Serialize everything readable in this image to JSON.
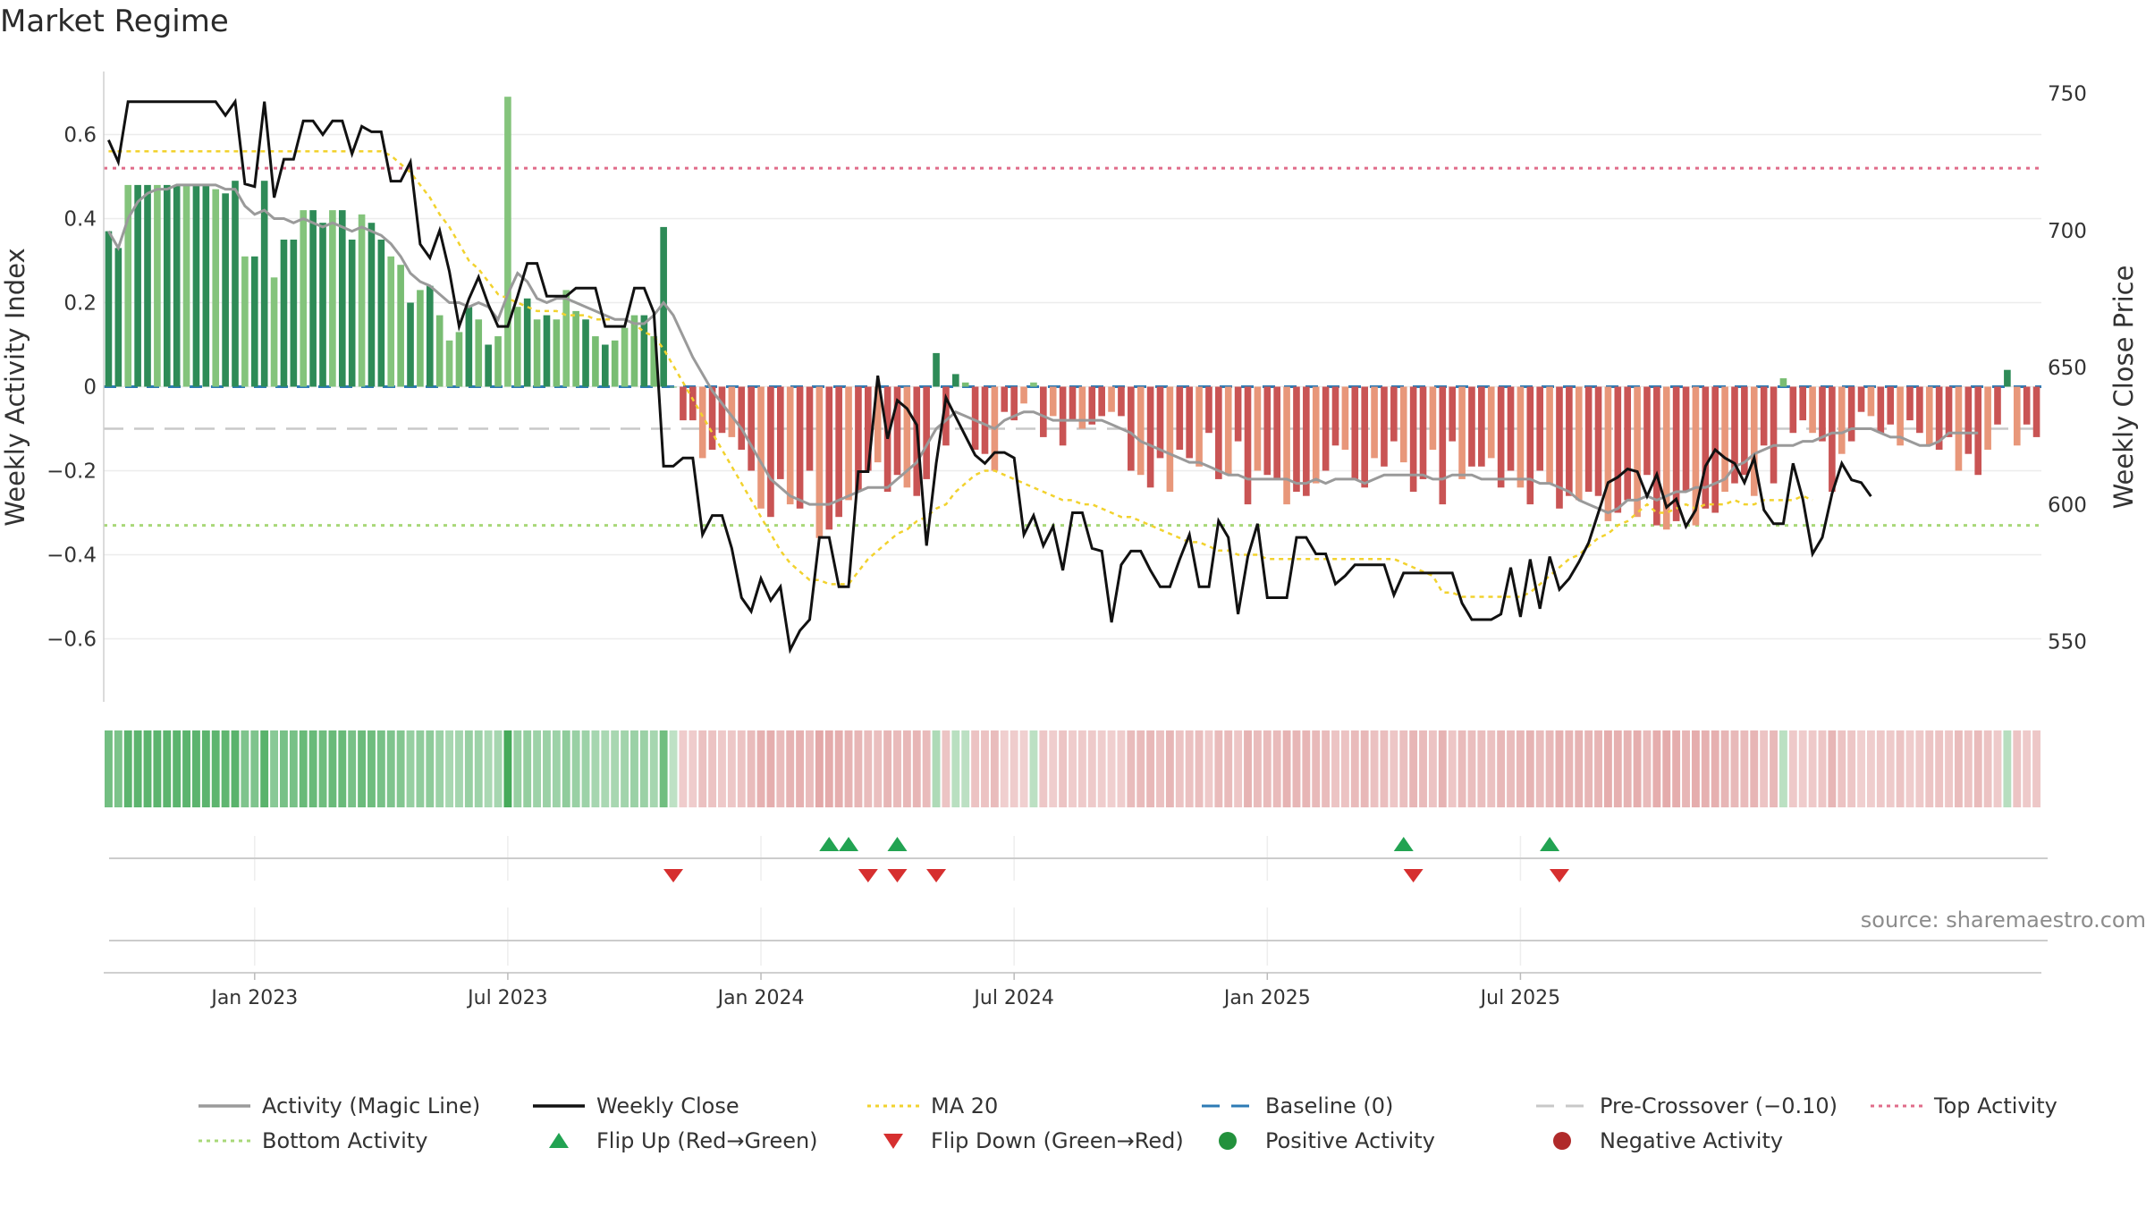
{
  "chart_data": {
    "type": "bar",
    "title": "Market Regime",
    "source_text": "source: sharemaestro.com",
    "ylabel": "Weekly Activity Index",
    "y2label": "Weekly Close Price",
    "ylim": [
      -0.75,
      0.75
    ],
    "y2lim": [
      528,
      758
    ],
    "yticks": [
      {
        "value": 0.6,
        "label": "0.6"
      },
      {
        "value": 0.4,
        "label": "0.4"
      },
      {
        "value": 0.2,
        "label": "0.2"
      },
      {
        "value": 0,
        "label": "0"
      },
      {
        "value": -0.2,
        "label": "−0.2"
      },
      {
        "value": -0.4,
        "label": "−0.4"
      },
      {
        "value": -0.6,
        "label": "−0.6"
      }
    ],
    "y2ticks": [
      {
        "value": 750,
        "label": "750"
      },
      {
        "value": 700,
        "label": "700"
      },
      {
        "value": 650,
        "label": "650"
      },
      {
        "value": 600,
        "label": "600"
      },
      {
        "value": 550,
        "label": "550"
      }
    ],
    "xticks": [
      {
        "week": 15,
        "label": "Jan 2023"
      },
      {
        "week": 41,
        "label": "Jul 2023"
      },
      {
        "week": 67,
        "label": "Jan 2024"
      },
      {
        "week": 93,
        "label": "Jul 2024"
      },
      {
        "week": 119,
        "label": "Jan 2025"
      },
      {
        "week": 145,
        "label": "Jul 2025"
      }
    ],
    "reference_lines": {
      "top_activity": 0.52,
      "bottom_activity": -0.33,
      "pre_crossover": -0.1,
      "baseline": 0
    },
    "activity": [
      0.37,
      0.33,
      0.48,
      0.48,
      0.48,
      0.48,
      0.48,
      0.48,
      0.48,
      0.48,
      0.48,
      0.47,
      0.46,
      0.49,
      0.31,
      0.31,
      0.49,
      0.26,
      0.35,
      0.35,
      0.42,
      0.42,
      0.39,
      0.42,
      0.42,
      0.35,
      0.41,
      0.39,
      0.35,
      0.31,
      0.29,
      0.2,
      0.23,
      0.24,
      0.17,
      0.11,
      0.13,
      0.19,
      0.16,
      0.1,
      0.12,
      0.69,
      0.19,
      0.21,
      0.16,
      0.17,
      0.16,
      0.23,
      0.18,
      0.16,
      0.12,
      0.1,
      0.11,
      0.14,
      0.17,
      0.17,
      0.12,
      0.38,
      0.0,
      -0.08,
      -0.08,
      -0.17,
      -0.15,
      -0.11,
      -0.12,
      -0.15,
      -0.2,
      -0.29,
      -0.31,
      -0.22,
      -0.28,
      -0.29,
      -0.2,
      -0.36,
      -0.34,
      -0.31,
      -0.27,
      -0.25,
      -0.2,
      -0.18,
      -0.25,
      -0.21,
      -0.24,
      -0.26,
      -0.22,
      0.08,
      -0.14,
      0.03,
      0.01,
      -0.15,
      -0.16,
      -0.2,
      -0.06,
      -0.08,
      -0.04,
      0.01,
      -0.12,
      -0.07,
      -0.14,
      -0.08,
      -0.1,
      -0.09,
      -0.07,
      -0.06,
      -0.07,
      -0.2,
      -0.21,
      -0.24,
      -0.17,
      -0.25,
      -0.15,
      -0.17,
      -0.19,
      -0.11,
      -0.22,
      -0.21,
      -0.13,
      -0.28,
      -0.2,
      -0.21,
      -0.22,
      -0.28,
      -0.25,
      -0.26,
      -0.23,
      -0.2,
      -0.14,
      -0.15,
      -0.22,
      -0.24,
      -0.17,
      -0.19,
      -0.13,
      -0.18,
      -0.25,
      -0.22,
      -0.15,
      -0.28,
      -0.13,
      -0.22,
      -0.19,
      -0.19,
      -0.17,
      -0.24,
      -0.2,
      -0.24,
      -0.28,
      -0.2,
      -0.23,
      -0.29,
      -0.26,
      -0.27,
      -0.25,
      -0.26,
      -0.32,
      -0.3,
      -0.27,
      -0.31,
      -0.21,
      -0.33,
      -0.34,
      -0.32,
      -0.25,
      -0.33,
      -0.29,
      -0.3,
      -0.25,
      -0.23,
      -0.21,
      -0.26,
      -0.14,
      -0.23,
      0.02,
      -0.11,
      -0.08,
      -0.11,
      -0.13,
      -0.25,
      -0.16,
      -0.13,
      -0.06,
      -0.07,
      -0.11,
      -0.09,
      -0.14,
      -0.08,
      -0.11,
      -0.14,
      -0.15,
      -0.12,
      -0.2,
      -0.16,
      -0.21,
      -0.15,
      -0.09,
      0.04,
      -0.14,
      -0.09,
      -0.12
    ],
    "magic_line": [
      0.37,
      0.33,
      0.4,
      0.44,
      0.46,
      0.47,
      0.47,
      0.48,
      0.48,
      0.48,
      0.48,
      0.48,
      0.47,
      0.47,
      0.43,
      0.41,
      0.42,
      0.4,
      0.4,
      0.39,
      0.4,
      0.39,
      0.38,
      0.39,
      0.38,
      0.37,
      0.38,
      0.37,
      0.36,
      0.34,
      0.31,
      0.27,
      0.25,
      0.24,
      0.22,
      0.2,
      0.2,
      0.19,
      0.2,
      0.19,
      0.16,
      0.22,
      0.27,
      0.25,
      0.21,
      0.2,
      0.21,
      0.21,
      0.2,
      0.19,
      0.18,
      0.17,
      0.16,
      0.16,
      0.15,
      0.15,
      0.17,
      0.2,
      0.17,
      0.12,
      0.07,
      0.03,
      -0.01,
      -0.04,
      -0.07,
      -0.1,
      -0.14,
      -0.18,
      -0.22,
      -0.24,
      -0.26,
      -0.27,
      -0.28,
      -0.28,
      -0.28,
      -0.27,
      -0.26,
      -0.25,
      -0.24,
      -0.24,
      -0.24,
      -0.22,
      -0.2,
      -0.18,
      -0.14,
      -0.1,
      -0.08,
      -0.06,
      -0.07,
      -0.08,
      -0.09,
      -0.1,
      -0.08,
      -0.07,
      -0.06,
      -0.06,
      -0.07,
      -0.08,
      -0.08,
      -0.08,
      -0.08,
      -0.08,
      -0.08,
      -0.09,
      -0.1,
      -0.11,
      -0.13,
      -0.14,
      -0.15,
      -0.16,
      -0.17,
      -0.18,
      -0.18,
      -0.19,
      -0.2,
      -0.21,
      -0.21,
      -0.22,
      -0.22,
      -0.22,
      -0.22,
      -0.22,
      -0.23,
      -0.23,
      -0.22,
      -0.23,
      -0.22,
      -0.22,
      -0.22,
      -0.23,
      -0.22,
      -0.21,
      -0.21,
      -0.21,
      -0.21,
      -0.21,
      -0.22,
      -0.22,
      -0.21,
      -0.21,
      -0.21,
      -0.22,
      -0.22,
      -0.22,
      -0.22,
      -0.22,
      -0.22,
      -0.23,
      -0.23,
      -0.24,
      -0.25,
      -0.27,
      -0.28,
      -0.29,
      -0.3,
      -0.29,
      -0.27,
      -0.27,
      -0.26,
      -0.27,
      -0.26,
      -0.25,
      -0.25,
      -0.24,
      -0.24,
      -0.23,
      -0.22,
      -0.19,
      -0.18,
      -0.16,
      -0.15,
      -0.14,
      -0.14,
      -0.14,
      -0.13,
      -0.13,
      -0.12,
      -0.11,
      -0.11,
      -0.1,
      -0.1,
      -0.1,
      -0.11,
      -0.12,
      -0.12,
      -0.13,
      -0.14,
      -0.14,
      -0.13,
      -0.11,
      -0.11,
      -0.11,
      -0.11
    ],
    "weekly_close": [
      733,
      725,
      747,
      747,
      747,
      747,
      747,
      747,
      747,
      747,
      747,
      747,
      742,
      747,
      717,
      716,
      747,
      712,
      726,
      726,
      740,
      740,
      735,
      740,
      740,
      728,
      738,
      736,
      736,
      718,
      718,
      725,
      695,
      690,
      700,
      685,
      665,
      675,
      683,
      673,
      665,
      665,
      676,
      688,
      688,
      676,
      676,
      676,
      679,
      679,
      679,
      665,
      665,
      665,
      679,
      679,
      670,
      614,
      614,
      617,
      617,
      589,
      596,
      596,
      584,
      566,
      561,
      573,
      565,
      570,
      547,
      554,
      558,
      588,
      588,
      570,
      570,
      612,
      612,
      647,
      624,
      638,
      635,
      629,
      585,
      615,
      639,
      632,
      625,
      618,
      615,
      619,
      619,
      617,
      589,
      596,
      585,
      592,
      576,
      597,
      597,
      584,
      583,
      557,
      578,
      583,
      583,
      576,
      570,
      570,
      580,
      589,
      570,
      570,
      594,
      588,
      560,
      581,
      593,
      566,
      566,
      566,
      588,
      588,
      582,
      582,
      571,
      574,
      578,
      578,
      578,
      578,
      567,
      575,
      575,
      575,
      575,
      575,
      575,
      564,
      558,
      558,
      558,
      560,
      577,
      559,
      580,
      562,
      581,
      569,
      573,
      579,
      586,
      597,
      608,
      610,
      613,
      612,
      603,
      611,
      599,
      602,
      592,
      598,
      614,
      620,
      617,
      615,
      608,
      617,
      598,
      593,
      593,
      615,
      602,
      582,
      588,
      604,
      615,
      609,
      608,
      603
    ],
    "ma20": [
      0.56,
      0.56,
      0.56,
      0.56,
      0.56,
      0.56,
      0.56,
      0.56,
      0.56,
      0.56,
      0.56,
      0.56,
      0.56,
      0.56,
      0.56,
      0.56,
      0.56,
      0.56,
      0.56,
      0.56,
      0.56,
      0.56,
      0.56,
      0.56,
      0.56,
      0.56,
      0.56,
      0.56,
      0.56,
      0.55,
      0.53,
      0.51,
      0.48,
      0.45,
      0.41,
      0.38,
      0.34,
      0.3,
      0.28,
      0.25,
      0.22,
      0.21,
      0.2,
      0.19,
      0.18,
      0.18,
      0.18,
      0.17,
      0.17,
      0.17,
      0.16,
      0.16,
      0.16,
      0.16,
      0.15,
      0.13,
      0.12,
      0.09,
      0.05,
      0.01,
      -0.03,
      -0.07,
      -0.11,
      -0.15,
      -0.19,
      -0.23,
      -0.27,
      -0.31,
      -0.35,
      -0.39,
      -0.42,
      -0.44,
      -0.46,
      -0.46,
      -0.47,
      -0.47,
      -0.47,
      -0.44,
      -0.41,
      -0.39,
      -0.37,
      -0.35,
      -0.34,
      -0.32,
      -0.31,
      -0.29,
      -0.28,
      -0.25,
      -0.23,
      -0.21,
      -0.2,
      -0.2,
      -0.21,
      -0.22,
      -0.23,
      -0.24,
      -0.25,
      -0.26,
      -0.27,
      -0.27,
      -0.28,
      -0.28,
      -0.29,
      -0.3,
      -0.31,
      -0.31,
      -0.32,
      -0.33,
      -0.34,
      -0.35,
      -0.36,
      -0.37,
      -0.37,
      -0.38,
      -0.39,
      -0.39,
      -0.4,
      -0.4,
      -0.4,
      -0.41,
      -0.41,
      -0.41,
      -0.41,
      -0.41,
      -0.41,
      -0.41,
      -0.41,
      -0.41,
      -0.41,
      -0.41,
      -0.41,
      -0.41,
      -0.41,
      -0.42,
      -0.43,
      -0.44,
      -0.45,
      -0.49,
      -0.49,
      -0.5,
      -0.5,
      -0.5,
      -0.5,
      -0.5,
      -0.5,
      -0.5,
      -0.49,
      -0.47,
      -0.45,
      -0.43,
      -0.41,
      -0.4,
      -0.38,
      -0.36,
      -0.35,
      -0.33,
      -0.32,
      -0.3,
      -0.28,
      -0.3,
      -0.3,
      -0.29,
      -0.28,
      -0.29,
      -0.28,
      -0.28,
      -0.28,
      -0.27,
      -0.28,
      -0.28,
      -0.27,
      -0.27,
      -0.27,
      -0.27,
      -0.26,
      -0.27
    ],
    "flip_up_weeks": [
      74,
      76,
      81,
      133,
      148
    ],
    "flip_down_weeks": [
      58,
      78,
      81,
      85,
      134,
      149
    ],
    "legend": [
      {
        "label": "Activity (Magic Line)",
        "style": "line",
        "color": "#9a9a9a"
      },
      {
        "label": "Weekly Close",
        "style": "line",
        "color": "#111111"
      },
      {
        "label": "MA 20",
        "style": "dotted",
        "color": "#f2d22e"
      },
      {
        "label": "Baseline (0)",
        "style": "dashed",
        "color": "#2e7bb5"
      },
      {
        "label": "Pre-Crossover (−0.10)",
        "style": "dashed",
        "color": "#c8c8c8"
      },
      {
        "label": "Top Activity",
        "style": "dotted",
        "color": "#e06c8a"
      },
      {
        "label": "Bottom Activity",
        "style": "dotted",
        "color": "#a8d878"
      },
      {
        "label": "Flip Up (Red→Green)",
        "style": "triangle-up",
        "color": "#22a352"
      },
      {
        "label": "Flip Down (Green→Red)",
        "style": "triangle-down",
        "color": "#d62f2f"
      },
      {
        "label": "Positive Activity",
        "style": "circle",
        "color": "#22913c"
      },
      {
        "label": "Negative Activity",
        "style": "circle",
        "color": "#b02a2a"
      }
    ]
  }
}
